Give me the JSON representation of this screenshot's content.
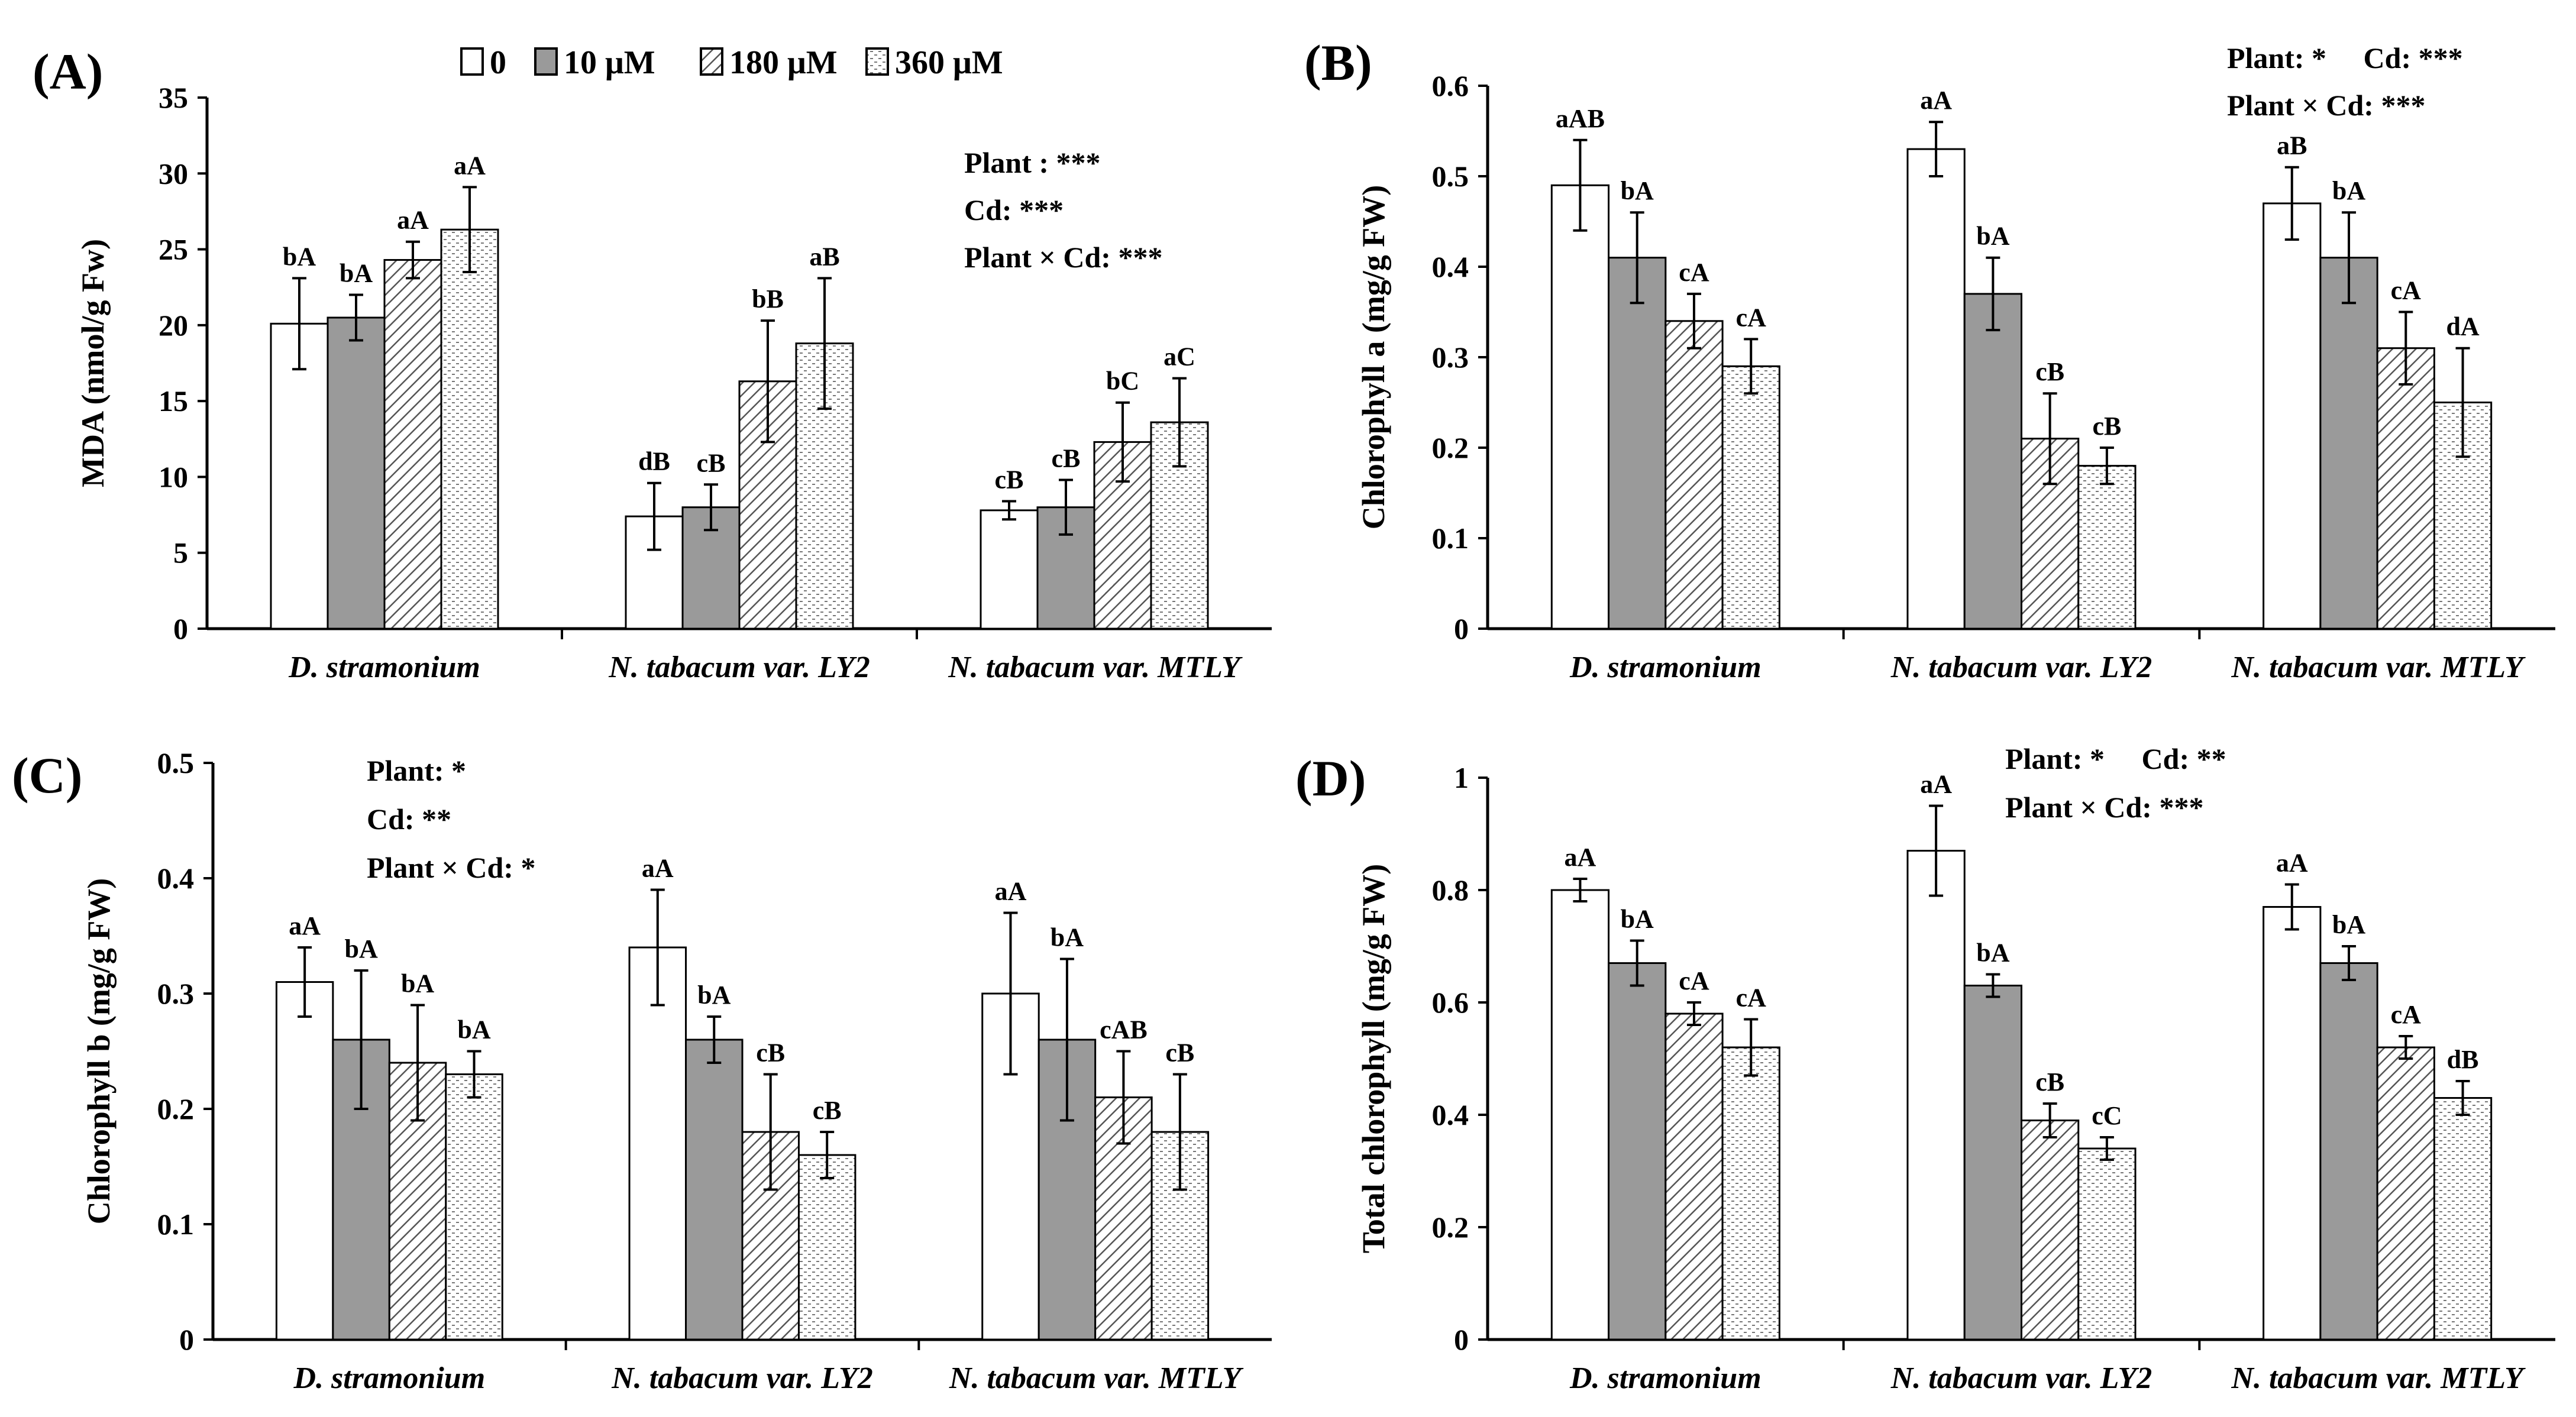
{
  "legend": {
    "entries": [
      {
        "label": "0",
        "pattern": "white"
      },
      {
        "label": "10 μM",
        "pattern": "gray"
      },
      {
        "label": "180 μM",
        "pattern": "hatch"
      },
      {
        "label": "360 μM",
        "pattern": "dots"
      }
    ]
  },
  "colors": {
    "bar_gray": "#9a9a9a",
    "axis": "#000000",
    "background": "#ffffff"
  },
  "chart_data": [
    {
      "panel": "(A)",
      "type": "bar",
      "ylabel": "MDA (nmol/g Fw)",
      "ylim": [
        0,
        35
      ],
      "yticks": [
        "0",
        "5",
        "10",
        "15",
        "20",
        "25",
        "30",
        "35"
      ],
      "categories": [
        "D. stramonium",
        "N. tabacum var. LY2",
        "N. tabacum var. MTLY"
      ],
      "series": [
        {
          "name": "0",
          "values": [
            20.1,
            7.4,
            7.8
          ],
          "errors": [
            3.0,
            2.2,
            0.6
          ],
          "labels": [
            "bA",
            "dB",
            "cB"
          ]
        },
        {
          "name": "10 μM",
          "values": [
            20.5,
            8.0,
            8.0
          ],
          "errors": [
            1.5,
            1.5,
            1.8
          ],
          "labels": [
            "bA",
            "cB",
            "cB"
          ]
        },
        {
          "name": "180 μM",
          "values": [
            24.3,
            16.3,
            12.3
          ],
          "errors": [
            1.2,
            4.0,
            2.6
          ],
          "labels": [
            "aA",
            "bB",
            "bC"
          ]
        },
        {
          "name": "360 μM",
          "values": [
            26.3,
            18.8,
            13.6
          ],
          "errors": [
            2.8,
            4.3,
            2.9
          ],
          "labels": [
            "aA",
            "aB",
            "aC"
          ]
        }
      ],
      "stats": [
        "Plant : ***",
        "Cd: ***",
        "Plant × Cd: ***"
      ]
    },
    {
      "panel": "(B)",
      "type": "bar",
      "ylabel": "Chlorophyll a (mg/g FW)",
      "ylim": [
        0,
        0.6
      ],
      "yticks": [
        "0",
        "0.1",
        "0.2",
        "0.3",
        "0.4",
        "0.5",
        "0.6"
      ],
      "categories": [
        "D. stramonium",
        "N. tabacum var. LY2",
        "N. tabacum var. MTLY"
      ],
      "series": [
        {
          "name": "0",
          "values": [
            0.49,
            0.53,
            0.47
          ],
          "errors": [
            0.05,
            0.03,
            0.04
          ],
          "labels": [
            "aAB",
            "aA",
            "aB"
          ]
        },
        {
          "name": "10 μM",
          "values": [
            0.41,
            0.37,
            0.41
          ],
          "errors": [
            0.05,
            0.04,
            0.05
          ],
          "labels": [
            "bA",
            "bA",
            "bA"
          ]
        },
        {
          "name": "180 μM",
          "values": [
            0.34,
            0.21,
            0.31
          ],
          "errors": [
            0.03,
            0.05,
            0.04
          ],
          "labels": [
            "cA",
            "cB",
            "cA"
          ]
        },
        {
          "name": "360 μM",
          "values": [
            0.29,
            0.18,
            0.25
          ],
          "errors": [
            0.03,
            0.02,
            0.06
          ],
          "labels": [
            "cA",
            "cB",
            "dA"
          ]
        }
      ],
      "stats": [
        "Plant: *     Cd: ***",
        "Plant × Cd: ***"
      ]
    },
    {
      "panel": "(C)",
      "type": "bar",
      "ylabel": "Chlorophyll b (mg/g FW)",
      "ylim": [
        0,
        0.5
      ],
      "yticks": [
        "0",
        "0.1",
        "0.2",
        "0.3",
        "0.4",
        "0.5"
      ],
      "categories": [
        "D. stramonium",
        "N. tabacum var. LY2",
        "N. tabacum var. MTLY"
      ],
      "series": [
        {
          "name": "0",
          "values": [
            0.31,
            0.34,
            0.3
          ],
          "errors": [
            0.03,
            0.05,
            0.07
          ],
          "labels": [
            "aA",
            "aA",
            "aA"
          ]
        },
        {
          "name": "10 μM",
          "values": [
            0.26,
            0.26,
            0.26
          ],
          "errors": [
            0.06,
            0.02,
            0.07
          ],
          "labels": [
            "bA",
            "bA",
            "bA"
          ]
        },
        {
          "name": "180 μM",
          "values": [
            0.24,
            0.18,
            0.21
          ],
          "errors": [
            0.05,
            0.05,
            0.04
          ],
          "labels": [
            "bA",
            "cB",
            "cAB"
          ]
        },
        {
          "name": "360 μM",
          "values": [
            0.23,
            0.16,
            0.18
          ],
          "errors": [
            0.02,
            0.02,
            0.05
          ],
          "labels": [
            "bA",
            "cB",
            "cB"
          ]
        }
      ],
      "stats": [
        "Plant: *",
        "Cd: **",
        "Plant × Cd: *"
      ]
    },
    {
      "panel": "(D)",
      "type": "bar",
      "ylabel": "Total chlorophyll (mg/g FW)",
      "ylim": [
        0,
        1
      ],
      "yticks": [
        "0",
        "0.2",
        "0.4",
        "0.6",
        "0.8",
        "1"
      ],
      "categories": [
        "D. stramonium",
        "N. tabacum var. LY2",
        "N. tabacum var. MTLY"
      ],
      "series": [
        {
          "name": "0",
          "values": [
            0.8,
            0.87,
            0.77
          ],
          "errors": [
            0.02,
            0.08,
            0.04
          ],
          "labels": [
            "aA",
            "aA",
            "aA"
          ]
        },
        {
          "name": "10 μM",
          "values": [
            0.67,
            0.63,
            0.67
          ],
          "errors": [
            0.04,
            0.02,
            0.03
          ],
          "labels": [
            "bA",
            "bA",
            "bA"
          ]
        },
        {
          "name": "180 μM",
          "values": [
            0.58,
            0.39,
            0.52
          ],
          "errors": [
            0.02,
            0.03,
            0.02
          ],
          "labels": [
            "cA",
            "cB",
            "cA"
          ]
        },
        {
          "name": "360 μM",
          "values": [
            0.52,
            0.34,
            0.43
          ],
          "errors": [
            0.05,
            0.02,
            0.03
          ],
          "labels": [
            "cA",
            "cC",
            "dB"
          ]
        }
      ],
      "stats": [
        "Plant: *     Cd: **",
        "Plant × Cd: ***"
      ]
    }
  ]
}
